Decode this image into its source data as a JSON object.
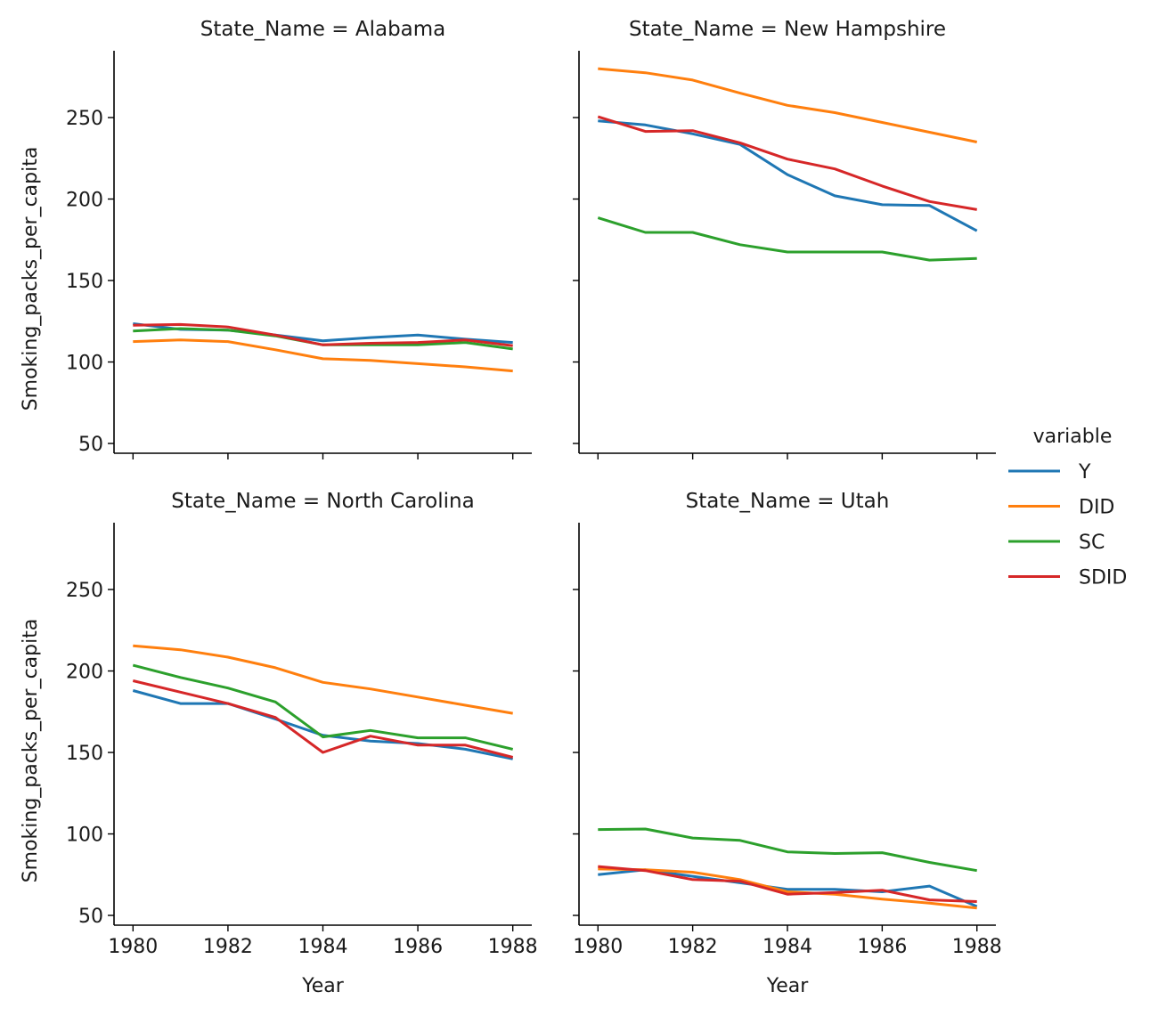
{
  "chart_data": {
    "type": "line",
    "layout": "facet-grid 2x2, shared axes",
    "xlabel": "Year",
    "ylabel": "Smoking_packs_per_capita",
    "x": [
      1980,
      1981,
      1982,
      1983,
      1984,
      1985,
      1986,
      1987,
      1988
    ],
    "x_ticks": [
      1980,
      1982,
      1984,
      1986,
      1988
    ],
    "y_ticks": [
      50,
      100,
      150,
      200,
      250
    ],
    "ylim": [
      44,
      291
    ],
    "xlim": [
      1979.6,
      1988.4
    ],
    "grid": false,
    "legend": {
      "title": "variable",
      "placement": "right",
      "entries": [
        {
          "name": "Y",
          "color": "#1f77b4"
        },
        {
          "name": "DID",
          "color": "#ff7f0e"
        },
        {
          "name": "SC",
          "color": "#2ca02c"
        },
        {
          "name": "SDID",
          "color": "#d62728"
        }
      ]
    },
    "panels": [
      {
        "title": "State_Name = Alabama",
        "series": [
          {
            "name": "Y",
            "values": [
              123.5,
              120,
              119.5,
              116.5,
              113,
              115,
              116.5,
              114,
              112
            ]
          },
          {
            "name": "DID",
            "values": [
              112.5,
              113.5,
              112.5,
              107.5,
              102,
              101,
              99,
              97,
              94.5
            ]
          },
          {
            "name": "SC",
            "values": [
              119,
              120.5,
              119.5,
              116,
              110.5,
              110.5,
              110.5,
              112,
              108
            ]
          },
          {
            "name": "SDID",
            "values": [
              122.5,
              123,
              121.5,
              116.5,
              110.5,
              111.5,
              112,
              113.5,
              110
            ]
          }
        ]
      },
      {
        "title": "State_Name = New Hampshire",
        "series": [
          {
            "name": "Y",
            "values": [
              248,
              245.5,
              240,
              233.5,
              215,
              202,
              196.5,
              196,
              180.5
            ]
          },
          {
            "name": "DID",
            "values": [
              280,
              277.5,
              273,
              265,
              257.5,
              253,
              247,
              241,
              235
            ]
          },
          {
            "name": "SC",
            "values": [
              188.5,
              179.5,
              179.5,
              172,
              167.5,
              167.5,
              167.5,
              162.5,
              163.5
            ]
          },
          {
            "name": "SDID",
            "values": [
              250.5,
              241.5,
              242,
              234.5,
              224.5,
              218.5,
              208,
              198.5,
              193.5
            ]
          }
        ]
      },
      {
        "title": "State_Name = North Carolina",
        "series": [
          {
            "name": "Y",
            "values": [
              188,
              180,
              180,
              170.5,
              160.5,
              157,
              155.5,
              152,
              146
            ]
          },
          {
            "name": "DID",
            "values": [
              215.5,
              213,
              208.5,
              202,
              193,
              189,
              184,
              179,
              174
            ]
          },
          {
            "name": "SC",
            "values": [
              203.5,
              196,
              189.5,
              181,
              159.5,
              163.5,
              159,
              159,
              152
            ]
          },
          {
            "name": "SDID",
            "values": [
              194,
              187,
              180,
              171.5,
              150,
              160,
              154.5,
              154.5,
              147
            ]
          }
        ]
      },
      {
        "title": "State_Name = Utah",
        "series": [
          {
            "name": "Y",
            "values": [
              75,
              78,
              74,
              70,
              66,
              66,
              64.5,
              68,
              55.5
            ]
          },
          {
            "name": "DID",
            "values": [
              78.5,
              78,
              76.5,
              72,
              64.5,
              63,
              60,
              57.5,
              54.5
            ]
          },
          {
            "name": "SC",
            "values": [
              102.7,
              103,
              97.5,
              96,
              89,
              88,
              88.5,
              82.5,
              77.5
            ]
          },
          {
            "name": "SDID",
            "values": [
              80,
              77.5,
              72,
              71,
              63,
              64,
              65.5,
              59.5,
              58.5
            ]
          }
        ]
      }
    ]
  }
}
